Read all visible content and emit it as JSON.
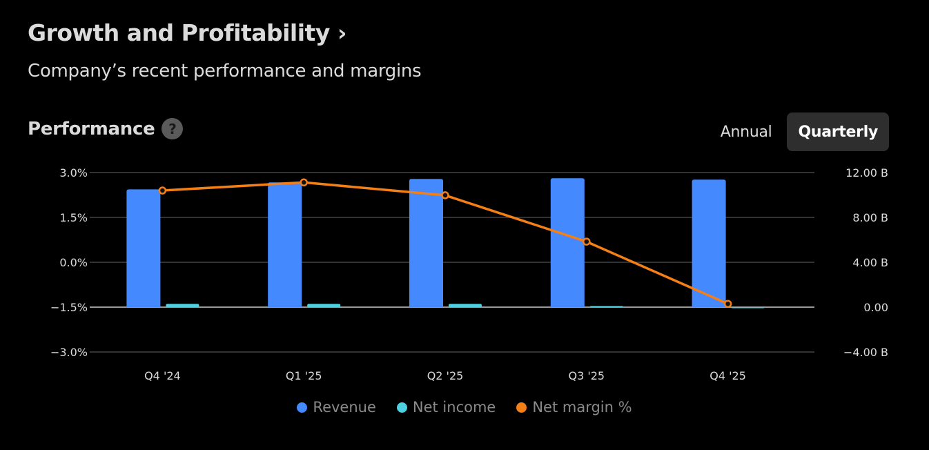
{
  "header": {
    "title": "Growth and Profitability ›",
    "subtitle": "Company’s recent performance and margins"
  },
  "section": {
    "title": "Performance",
    "help_icon": "?",
    "toggle": [
      {
        "label": "Annual",
        "active": false
      },
      {
        "label": "Quarterly",
        "active": true
      }
    ]
  },
  "colors": {
    "revenue": "#4589ff",
    "net_income": "#4dd0e1",
    "net_margin": "#f57f17",
    "grid": "#333333",
    "baseline": "#999999"
  },
  "chart_data": {
    "type": "bar+line",
    "categories": [
      "Q4 '24",
      "Q1 '25",
      "Q2 '25",
      "Q3 '25",
      "Q4 '25"
    ],
    "series": [
      {
        "name": "Revenue",
        "axis": "right",
        "unit": "B",
        "values": [
          10.5,
          11.12,
          11.43,
          11.49,
          11.37
        ]
      },
      {
        "name": "Net income",
        "axis": "right",
        "unit": "B",
        "values": [
          0.29,
          0.29,
          0.29,
          0.1,
          -0.07
        ]
      },
      {
        "name": "Net margin %",
        "axis": "left",
        "type": "line",
        "unit": "%",
        "values": [
          2.4,
          2.67,
          2.24,
          0.69,
          -1.39
        ]
      }
    ],
    "left_axis": {
      "ticks": [
        "3.0%",
        "1.5%",
        "0.0%",
        "−1.5%",
        "−3.0%"
      ],
      "range": [
        -3.0,
        3.0
      ]
    },
    "right_axis": {
      "ticks": [
        "12.00 B",
        "8.00 B",
        "4.00 B",
        "0.00",
        "−4.00 B"
      ],
      "range": [
        -4,
        12
      ]
    },
    "legend": [
      "Revenue",
      "Net income",
      "Net margin %"
    ],
    "legend_position": "bottom",
    "grid": true
  }
}
